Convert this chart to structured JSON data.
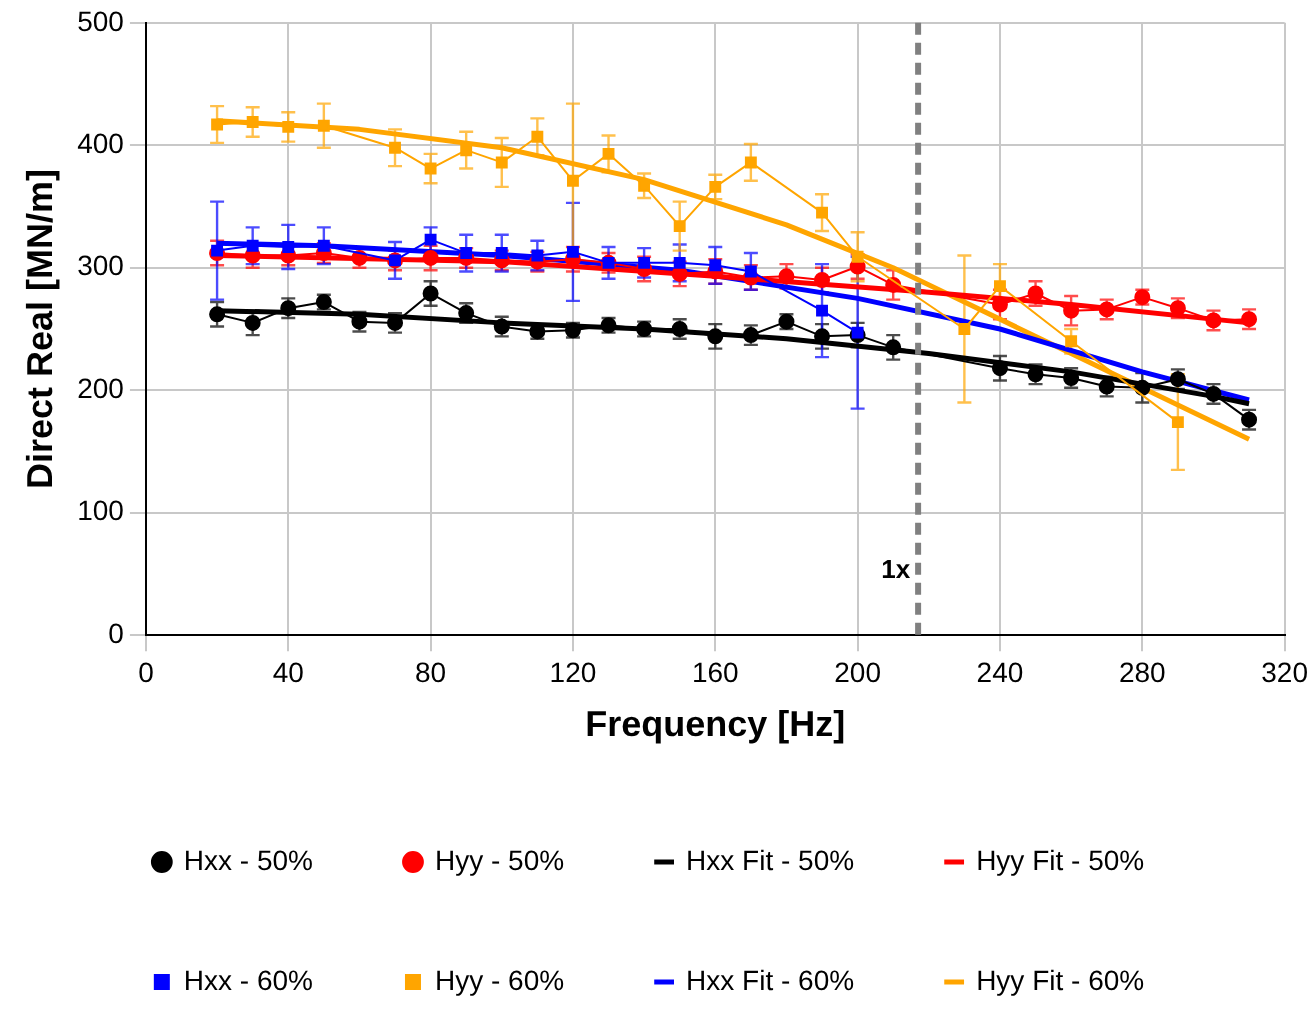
{
  "chart_data": {
    "type": "line",
    "xlabel": "Frequency [Hz]",
    "ylabel": "Direct Real [MN/m]",
    "xlim": [
      0,
      320
    ],
    "xticks": [
      0,
      40,
      80,
      120,
      160,
      200,
      240,
      280,
      320
    ],
    "ylim": [
      0,
      500
    ],
    "yticks": [
      0,
      100,
      200,
      300,
      400,
      500
    ],
    "grid": true,
    "legend": "bottom",
    "ref_lines": [
      {
        "axis": "x",
        "value": 217,
        "label": "1x",
        "color": "#808080",
        "line_style": "dashed"
      }
    ],
    "series": [
      {
        "name": "Hxx - 50%",
        "color": "#000000",
        "marker": "circle",
        "x": [
          20,
          30,
          40,
          50,
          60,
          70,
          80,
          90,
          100,
          110,
          120,
          130,
          140,
          150,
          160,
          170,
          180,
          190,
          200,
          210,
          240,
          250,
          260,
          270,
          280,
          290,
          300,
          310
        ],
        "values": [
          262,
          255,
          267,
          272,
          256,
          255,
          279,
          263,
          252,
          248,
          249,
          253,
          250,
          250,
          244,
          245,
          256,
          244,
          245,
          235,
          218,
          213,
          210,
          203,
          202,
          209,
          197,
          176
        ],
        "errors": [
          10,
          10,
          8,
          6,
          8,
          8,
          10,
          8,
          8,
          6,
          6,
          6,
          6,
          8,
          10,
          8,
          6,
          10,
          10,
          10,
          10,
          8,
          8,
          8,
          12,
          8,
          8,
          8
        ]
      },
      {
        "name": "Hyy - 50%",
        "color": "#ff0000",
        "marker": "circle",
        "x": [
          20,
          30,
          40,
          50,
          60,
          70,
          80,
          90,
          100,
          110,
          120,
          130,
          140,
          150,
          160,
          170,
          180,
          190,
          200,
          210,
          240,
          250,
          260,
          270,
          280,
          290,
          300,
          310
        ],
        "values": [
          312,
          310,
          310,
          312,
          308,
          306,
          308,
          308,
          306,
          305,
          307,
          304,
          299,
          295,
          297,
          292,
          293,
          290,
          301,
          286,
          270,
          279,
          265,
          266,
          276,
          267,
          257,
          258
        ],
        "errors": [
          10,
          10,
          8,
          8,
          8,
          8,
          10,
          8,
          8,
          8,
          10,
          8,
          10,
          10,
          10,
          10,
          10,
          10,
          10,
          12,
          12,
          10,
          12,
          8,
          6,
          8,
          8,
          8
        ]
      },
      {
        "name": "Hxx Fit - 50%",
        "color": "#000000",
        "marker": "none",
        "x": [
          20,
          60,
          100,
          140,
          180,
          220,
          260,
          300,
          310
        ],
        "values": [
          265,
          262,
          255,
          250,
          242,
          230,
          215,
          195,
          189
        ]
      },
      {
        "name": "Hyy Fit - 50%",
        "color": "#ff0000",
        "marker": "none",
        "x": [
          20,
          100,
          160,
          220,
          260,
          310
        ],
        "values": [
          310,
          305,
          293,
          280,
          270,
          255
        ]
      },
      {
        "name": "Hxx - 60%",
        "color": "#0000ff",
        "marker": "square",
        "x": [
          20,
          30,
          40,
          50,
          70,
          80,
          90,
          100,
          110,
          120,
          130,
          140,
          150,
          160,
          170,
          190,
          200
        ],
        "values": [
          314,
          318,
          317,
          318,
          306,
          323,
          312,
          312,
          310,
          313,
          304,
          304,
          304,
          302,
          297,
          265,
          247
        ],
        "errors": [
          40,
          15,
          18,
          15,
          15,
          10,
          15,
          15,
          12,
          40,
          13,
          12,
          15,
          15,
          15,
          38,
          62
        ]
      },
      {
        "name": "Hyy - 60%",
        "color": "#ffa500",
        "marker": "square",
        "x": [
          20,
          30,
          40,
          50,
          70,
          80,
          90,
          100,
          110,
          120,
          130,
          140,
          150,
          160,
          170,
          190,
          200,
          230,
          240,
          260,
          290
        ],
        "values": [
          417,
          419,
          415,
          416,
          398,
          381,
          396,
          386,
          407,
          371,
          393,
          367,
          334,
          366,
          386,
          345,
          309,
          250,
          285,
          240,
          174
        ],
        "errors": [
          15,
          12,
          12,
          18,
          15,
          12,
          15,
          20,
          15,
          63,
          15,
          10,
          20,
          10,
          15,
          15,
          20,
          60,
          18,
          10,
          39
        ]
      },
      {
        "name": "Hxx Fit - 60%",
        "color": "#0000ff",
        "marker": "none",
        "x": [
          20,
          50,
          100,
          150,
          200,
          240,
          280,
          310
        ],
        "values": [
          320,
          318,
          310,
          298,
          275,
          250,
          215,
          192
        ]
      },
      {
        "name": "Hyy Fit - 60%",
        "color": "#ffa500",
        "marker": "none",
        "x": [
          20,
          60,
          100,
          140,
          180,
          210,
          230,
          260,
          290,
          310
        ],
        "values": [
          420,
          413,
          398,
          372,
          335,
          300,
          272,
          230,
          188,
          160
        ]
      }
    ]
  }
}
